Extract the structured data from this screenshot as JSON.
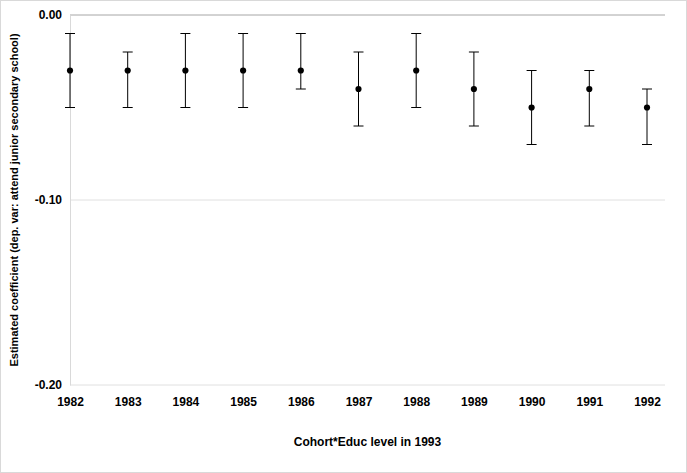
{
  "chart_data": {
    "type": "scatter",
    "x_label": "Cohort*Educ level in 1993",
    "y_label": "Estimated coefficient (dep. var: attend junior secondary school)",
    "categories": [
      "1982",
      "1983",
      "1984",
      "1985",
      "1986",
      "1987",
      "1988",
      "1989",
      "1990",
      "1991",
      "1992"
    ],
    "values": [
      -0.03,
      -0.03,
      -0.03,
      -0.03,
      -0.03,
      -0.04,
      -0.03,
      -0.04,
      -0.05,
      -0.04,
      -0.05
    ],
    "ci_lower": [
      -0.05,
      -0.05,
      -0.05,
      -0.05,
      -0.04,
      -0.06,
      -0.05,
      -0.06,
      -0.07,
      -0.06,
      -0.07
    ],
    "ci_upper": [
      -0.01,
      -0.02,
      -0.01,
      -0.01,
      -0.01,
      -0.02,
      -0.01,
      -0.02,
      -0.03,
      -0.03,
      -0.04
    ],
    "color": "#000000",
    "marker": "circle",
    "ylim": [
      -0.2,
      0.0
    ],
    "yticks": [
      {
        "value": -0.2,
        "label": "-0.20"
      },
      {
        "value": -0.1,
        "label": "-0.10"
      },
      {
        "value": 0.0,
        "label": "0.00"
      }
    ],
    "grid": true
  }
}
